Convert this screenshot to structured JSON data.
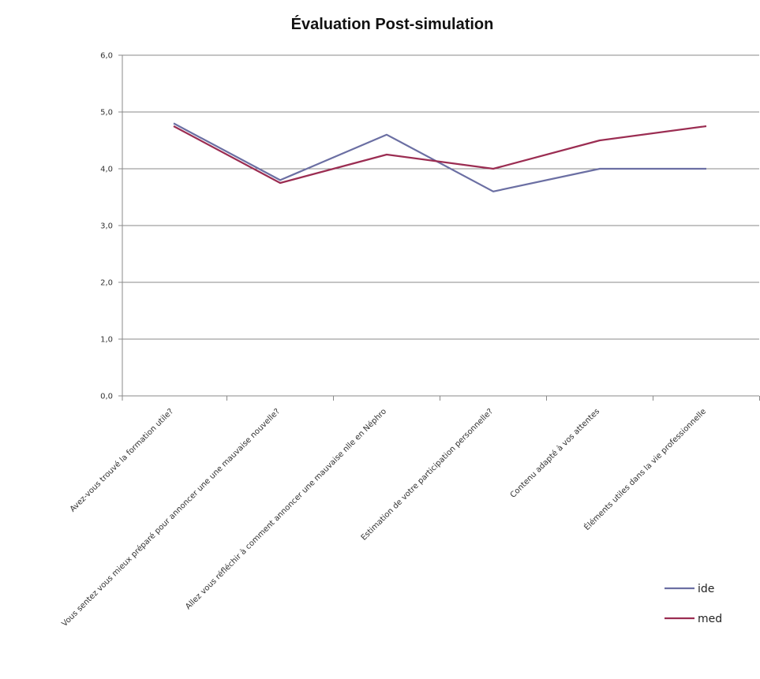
{
  "chart_data": {
    "type": "line",
    "title": "Évaluation Post-simulation",
    "xlabel": "",
    "ylabel": "",
    "ylim": [
      0,
      6
    ],
    "yticks": [
      "0,0",
      "1,0",
      "2,0",
      "3,0",
      "4,0",
      "5,0",
      "6,0"
    ],
    "grid": true,
    "legend_position": "bottom-right",
    "categories": [
      "Avez-vous trouvé la formation utile?",
      "Vous sentez vous mieux préparé pour annoncer une une mauvaise nouvelle?",
      "Allez vous réfléchir à comment annoncer une mauvaise nlle en Néphro",
      "Estimation de votre participation personnelle?",
      "Contenu adapté à vos attentes",
      "Éléments utiles dans la vie professionnelle"
    ],
    "series": [
      {
        "name": "ide",
        "color": "#6b6fa3",
        "values": [
          4.8,
          3.8,
          4.6,
          3.6,
          4.0,
          4.0
        ]
      },
      {
        "name": "med",
        "color": "#9b2d52",
        "values": [
          4.75,
          3.75,
          4.25,
          4.0,
          4.5,
          4.75
        ]
      }
    ]
  }
}
